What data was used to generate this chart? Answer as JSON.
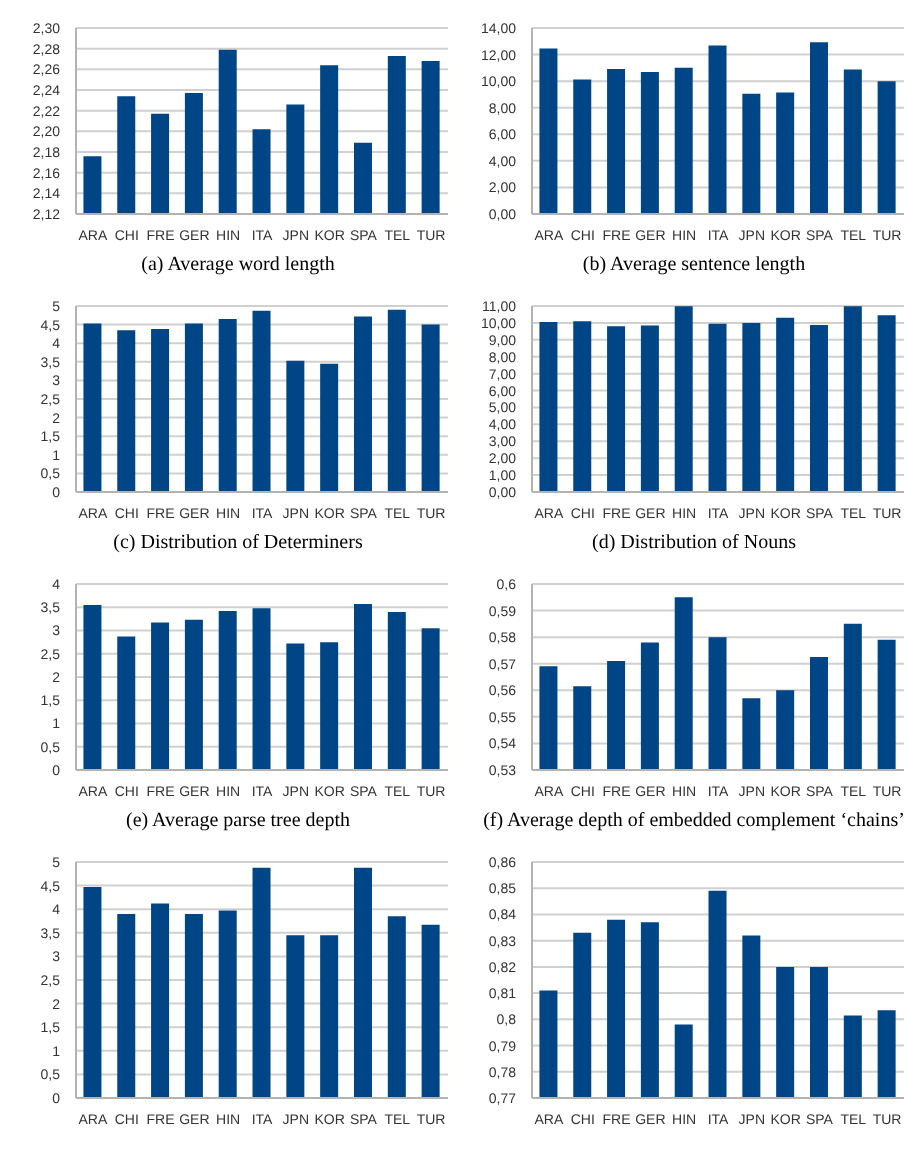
{
  "chart_data": [
    {
      "type": "bar",
      "title": "(a)  Average word length",
      "categories": [
        "ARA",
        "CHI",
        "FRE",
        "GER",
        "HIN",
        "ITA",
        "JPN",
        "KOR",
        "SPA",
        "TEL",
        "TUR"
      ],
      "values": [
        2.176,
        2.234,
        2.217,
        2.237,
        2.279,
        2.202,
        2.226,
        2.264,
        2.189,
        2.273,
        2.268
      ],
      "color": "#004586",
      "ylim": [
        2.12,
        2.3
      ],
      "yticks": [
        {
          "value": 2.12,
          "label": "2,12"
        },
        {
          "value": 2.14,
          "label": "2,14"
        },
        {
          "value": 2.16,
          "label": "2,16"
        },
        {
          "value": 2.18,
          "label": "2,18"
        },
        {
          "value": 2.2,
          "label": "2,20"
        },
        {
          "value": 2.22,
          "label": "2,22"
        },
        {
          "value": 2.24,
          "label": "2,24"
        },
        {
          "value": 2.26,
          "label": "2,26"
        },
        {
          "value": 2.28,
          "label": "2,28"
        },
        {
          "value": 2.3,
          "label": "2,30"
        }
      ],
      "grid": "y"
    },
    {
      "type": "bar",
      "title": "(b)  Average sentence length",
      "categories": [
        "ARA",
        "CHI",
        "FRE",
        "GER",
        "HIN",
        "ITA",
        "JPN",
        "KOR",
        "SPA",
        "TEL",
        "TUR"
      ],
      "values": [
        12.46,
        10.13,
        10.92,
        10.69,
        11.01,
        12.69,
        9.05,
        9.15,
        12.93,
        10.87,
        9.99
      ],
      "color": "#004586",
      "ylim": [
        0,
        14
      ],
      "yticks": [
        {
          "value": 0,
          "label": "0,00"
        },
        {
          "value": 2,
          "label": "2,00"
        },
        {
          "value": 4,
          "label": "4,00"
        },
        {
          "value": 6,
          "label": "6,00"
        },
        {
          "value": 8,
          "label": "8,00"
        },
        {
          "value": 10,
          "label": "10,00"
        },
        {
          "value": 12,
          "label": "12,00"
        },
        {
          "value": 14,
          "label": "14,00"
        }
      ],
      "grid": "y"
    },
    {
      "type": "bar",
      "title": "(c)  Distribution of Determiners",
      "categories": [
        "ARA",
        "CHI",
        "FRE",
        "GER",
        "HIN",
        "ITA",
        "JPN",
        "KOR",
        "SPA",
        "TEL",
        "TUR"
      ],
      "values": [
        4.53,
        4.35,
        4.38,
        4.53,
        4.65,
        4.87,
        3.53,
        3.45,
        4.72,
        4.9,
        4.5
      ],
      "color": "#004586",
      "ylim": [
        0,
        5
      ],
      "yticks": [
        0,
        {
          "value": 0.5,
          "label": "0,5"
        },
        1,
        {
          "value": 1.5,
          "label": "1,5"
        },
        2,
        {
          "value": 2.5,
          "label": "2,5"
        },
        3,
        {
          "value": 3.5,
          "label": "3,5"
        },
        4,
        {
          "value": 4.5,
          "label": "4,5"
        },
        5
      ],
      "grid": "y"
    },
    {
      "type": "bar",
      "title": "(d)  Distribution of Nouns",
      "categories": [
        "ARA",
        "CHI",
        "FRE",
        "GER",
        "HIN",
        "ITA",
        "JPN",
        "KOR",
        "SPA",
        "TEL",
        "TUR"
      ],
      "values": [
        10.05,
        10.1,
        9.8,
        9.85,
        10.98,
        9.95,
        10.0,
        10.3,
        9.87,
        10.98,
        10.45
      ],
      "color": "#004586",
      "ylim": [
        0,
        11
      ],
      "yticks": [
        {
          "value": 0,
          "label": "0,00"
        },
        {
          "value": 1,
          "label": "1,00"
        },
        {
          "value": 2,
          "label": "2,00"
        },
        {
          "value": 3,
          "label": "3,00"
        },
        {
          "value": 4,
          "label": "4,00"
        },
        {
          "value": 5,
          "label": "5,00"
        },
        {
          "value": 6,
          "label": "6,00"
        },
        {
          "value": 7,
          "label": "7,00"
        },
        {
          "value": 8,
          "label": "8,00"
        },
        {
          "value": 9,
          "label": "9,00"
        },
        {
          "value": 10,
          "label": "10,00"
        },
        {
          "value": 11,
          "label": "11,00"
        }
      ],
      "grid": "y"
    },
    {
      "type": "bar",
      "title": "(e)  Average parse tree depth",
      "categories": [
        "ARA",
        "CHI",
        "FRE",
        "GER",
        "HIN",
        "ITA",
        "JPN",
        "KOR",
        "SPA",
        "TEL",
        "TUR"
      ],
      "values": [
        3.55,
        2.87,
        3.17,
        3.23,
        3.42,
        3.48,
        2.72,
        2.75,
        3.57,
        3.4,
        3.05
      ],
      "color": "#004586",
      "ylim": [
        0,
        4
      ],
      "yticks": [
        0,
        {
          "value": 0.5,
          "label": "0,5"
        },
        1,
        {
          "value": 1.5,
          "label": "1,5"
        },
        2,
        {
          "value": 2.5,
          "label": "2,5"
        },
        3,
        {
          "value": 3.5,
          "label": "3,5"
        },
        4
      ],
      "grid": "y"
    },
    {
      "type": "bar",
      "title": "(f)  Average depth of embedded complement ‘chains’",
      "categories": [
        "ARA",
        "CHI",
        "FRE",
        "GER",
        "HIN",
        "ITA",
        "JPN",
        "KOR",
        "SPA",
        "TEL",
        "TUR"
      ],
      "values": [
        0.569,
        0.5615,
        0.571,
        0.578,
        0.595,
        0.58,
        0.557,
        0.56,
        0.5725,
        0.585,
        0.579
      ],
      "color": "#004586",
      "ylim": [
        0.53,
        0.6
      ],
      "yticks": [
        {
          "value": 0.53,
          "label": "0,53"
        },
        {
          "value": 0.54,
          "label": "0,54"
        },
        {
          "value": 0.55,
          "label": "0,55"
        },
        {
          "value": 0.56,
          "label": "0,56"
        },
        {
          "value": 0.57,
          "label": "0,57"
        },
        {
          "value": 0.58,
          "label": "0,58"
        },
        {
          "value": 0.59,
          "label": "0,59"
        },
        {
          "value": 0.6,
          "label": "0,6"
        }
      ],
      "grid": "y"
    },
    {
      "type": "bar",
      "categories": [
        "ARA",
        "CHI",
        "FRE",
        "GER",
        "HIN",
        "ITA",
        "JPN",
        "KOR",
        "SPA",
        "TEL",
        "TUR"
      ],
      "values": [
        4.47,
        3.9,
        4.12,
        3.9,
        3.97,
        4.88,
        3.45,
        3.45,
        4.88,
        3.85,
        3.67
      ],
      "color": "#004586",
      "ylim": [
        0,
        5
      ],
      "yticks": [
        0,
        {
          "value": 0.5,
          "label": "0,5"
        },
        1,
        {
          "value": 1.5,
          "label": "1,5"
        },
        2,
        {
          "value": 2.5,
          "label": "2,5"
        },
        3,
        {
          "value": 3.5,
          "label": "3,5"
        },
        4,
        {
          "value": 4.5,
          "label": "4,5"
        },
        5
      ],
      "grid": "y"
    },
    {
      "type": "bar",
      "categories": [
        "ARA",
        "CHI",
        "FRE",
        "GER",
        "HIN",
        "ITA",
        "JPN",
        "KOR",
        "SPA",
        "TEL",
        "TUR"
      ],
      "values": [
        0.811,
        0.833,
        0.838,
        0.837,
        0.798,
        0.849,
        0.832,
        0.82,
        0.82,
        0.8015,
        0.8035
      ],
      "color": "#004586",
      "ylim": [
        0.77,
        0.86
      ],
      "yticks": [
        {
          "value": 0.77,
          "label": "0,77"
        },
        {
          "value": 0.78,
          "label": "0,78"
        },
        {
          "value": 0.79,
          "label": "0,79"
        },
        {
          "value": 0.8,
          "label": "0,8"
        },
        {
          "value": 0.81,
          "label": "0,81"
        },
        {
          "value": 0.82,
          "label": "0,82"
        },
        {
          "value": 0.83,
          "label": "0,83"
        },
        {
          "value": 0.84,
          "label": "0,84"
        },
        {
          "value": 0.85,
          "label": "0,85"
        },
        {
          "value": 0.86,
          "label": "0,86"
        }
      ],
      "grid": "y"
    }
  ]
}
